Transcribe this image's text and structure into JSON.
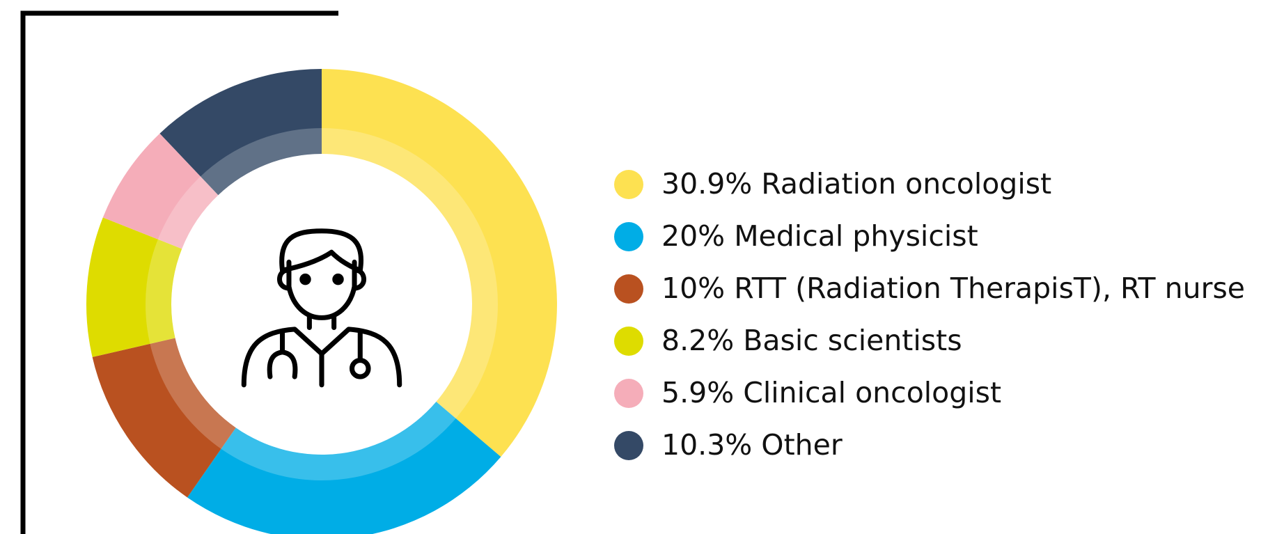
{
  "chart_data": {
    "type": "donut",
    "categories": [
      "Radiation oncologist",
      "Medical physicist",
      "RTT (Radiation TherapisT), RT nurse",
      "Basic scientists",
      "Clinical oncologist",
      "Other"
    ],
    "values": [
      30.9,
      20,
      10,
      8.2,
      5.9,
      10.3
    ],
    "value_labels": [
      "30.9%",
      "20%",
      "10%",
      "8.2%",
      "5.9%",
      "10.3%"
    ],
    "colors": [
      "#fde151",
      "#00ade6",
      "#b95120",
      "#dedc00",
      "#f5adb9",
      "#344966"
    ]
  }
}
